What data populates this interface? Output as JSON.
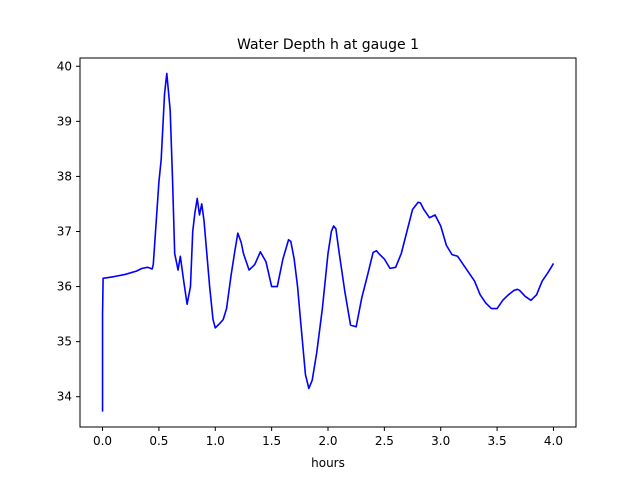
{
  "chart_data": {
    "type": "line",
    "title": "Water Depth h at gauge 1",
    "xlabel": "hours",
    "ylabel": "",
    "xlim": [
      -0.2,
      4.2
    ],
    "ylim": [
      33.45,
      40.15
    ],
    "xticks": [
      0.0,
      0.5,
      1.0,
      1.5,
      2.0,
      2.5,
      3.0,
      3.5,
      4.0
    ],
    "xtick_labels": [
      "0.0",
      "0.5",
      "1.0",
      "1.5",
      "2.0",
      "2.5",
      "3.0",
      "3.5",
      "4.0"
    ],
    "yticks": [
      34,
      35,
      36,
      37,
      38,
      39,
      40
    ],
    "ytick_labels": [
      "34",
      "35",
      "36",
      "37",
      "38",
      "39",
      "40"
    ],
    "grid": false,
    "legend": "none",
    "series": [
      {
        "color": "#0000ff",
        "x": [
          0.0,
          0.0,
          0.005,
          0.1,
          0.2,
          0.3,
          0.35,
          0.4,
          0.44,
          0.45,
          0.47,
          0.5,
          0.52,
          0.55,
          0.57,
          0.6,
          0.62,
          0.64,
          0.67,
          0.69,
          0.72,
          0.75,
          0.78,
          0.8,
          0.82,
          0.84,
          0.86,
          0.88,
          0.9,
          0.95,
          0.98,
          1.0,
          1.04,
          1.07,
          1.1,
          1.14,
          1.17,
          1.2,
          1.23,
          1.25,
          1.3,
          1.35,
          1.4,
          1.45,
          1.5,
          1.55,
          1.6,
          1.65,
          1.67,
          1.7,
          1.73,
          1.76,
          1.8,
          1.83,
          1.86,
          1.9,
          1.95,
          2.0,
          2.03,
          2.05,
          2.07,
          2.1,
          2.15,
          2.2,
          2.25,
          2.3,
          2.35,
          2.4,
          2.43,
          2.45,
          2.5,
          2.55,
          2.6,
          2.65,
          2.7,
          2.75,
          2.8,
          2.82,
          2.85,
          2.9,
          2.95,
          3.0,
          3.05,
          3.1,
          3.15,
          3.2,
          3.25,
          3.3,
          3.35,
          3.4,
          3.45,
          3.5,
          3.55,
          3.6,
          3.65,
          3.68,
          3.7,
          3.75,
          3.8,
          3.85,
          3.9,
          3.95,
          3.98,
          4.0
        ],
        "y": [
          33.73,
          35.5,
          36.15,
          36.18,
          36.22,
          36.28,
          36.33,
          36.35,
          36.32,
          36.4,
          37.0,
          37.9,
          38.3,
          39.5,
          39.87,
          39.2,
          38.0,
          36.6,
          36.3,
          36.55,
          36.1,
          35.68,
          36.0,
          37.0,
          37.35,
          37.6,
          37.3,
          37.5,
          37.2,
          36.0,
          35.4,
          35.25,
          35.33,
          35.4,
          35.6,
          36.2,
          36.6,
          36.97,
          36.8,
          36.6,
          36.3,
          36.4,
          36.63,
          36.45,
          36.0,
          36.0,
          36.5,
          36.85,
          36.82,
          36.5,
          36.0,
          35.3,
          34.4,
          34.15,
          34.3,
          34.8,
          35.6,
          36.6,
          37.0,
          37.1,
          37.05,
          36.6,
          35.9,
          35.3,
          35.27,
          35.8,
          36.2,
          36.62,
          36.65,
          36.6,
          36.5,
          36.33,
          36.35,
          36.6,
          37.0,
          37.4,
          37.53,
          37.52,
          37.4,
          37.25,
          37.3,
          37.1,
          36.75,
          36.58,
          36.55,
          36.4,
          36.25,
          36.1,
          35.85,
          35.7,
          35.6,
          35.6,
          35.75,
          35.85,
          35.93,
          35.95,
          35.93,
          35.82,
          35.75,
          35.85,
          36.1,
          36.25,
          36.35,
          36.42
        ]
      }
    ]
  }
}
